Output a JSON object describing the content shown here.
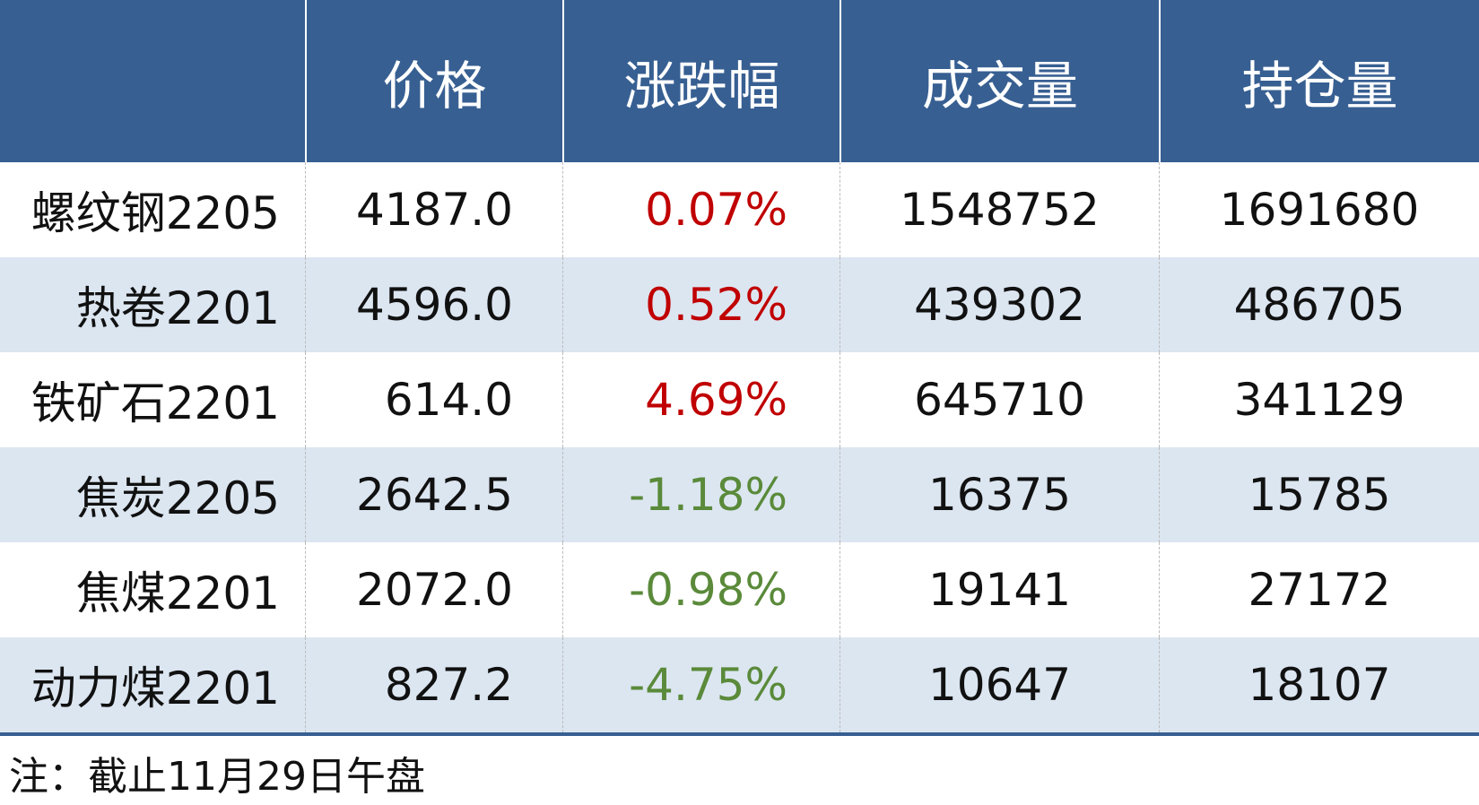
{
  "table": {
    "header": [
      "价格",
      "涨跌幅",
      "成交量",
      "持仓量"
    ],
    "rows": [
      [
        "螺纹钢2205",
        "4187.0",
        "0.07%",
        "1548752",
        "1691680"
      ],
      [
        "热卷2201",
        "4596.0",
        "0.52%",
        "439302",
        "486705"
      ],
      [
        "铁矿石2201",
        "614.0",
        "4.69%",
        "645710",
        "341129"
      ],
      [
        "焦炭2205",
        "2642.5",
        "-1.18%",
        "16375",
        "15785"
      ],
      [
        "焦煤2201",
        "2072.0",
        "-0.98%",
        "19141",
        "27172"
      ],
      [
        "动力煤2201",
        "827.2",
        "-4.75%",
        "10647",
        "18107"
      ]
    ],
    "change_colors": {
      "up": "#c00000",
      "down": "#5a8a3a"
    }
  },
  "note": "注：截止11月29日午盘"
}
